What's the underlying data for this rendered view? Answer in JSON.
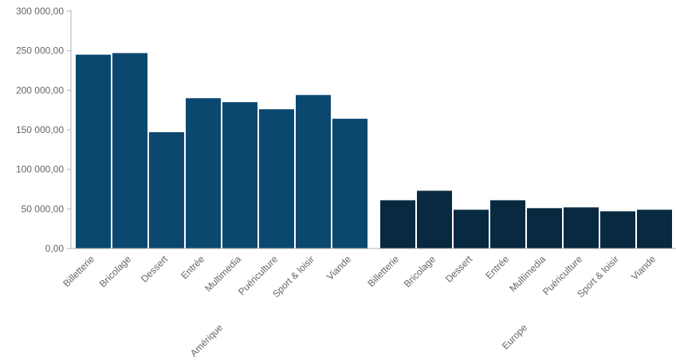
{
  "chart_data": {
    "type": "bar",
    "title": "",
    "xlabel": "",
    "ylabel": "",
    "ylim": [
      0,
      300000
    ],
    "yticks": [
      0,
      50000,
      100000,
      150000,
      200000,
      250000,
      300000
    ],
    "ytick_labels": [
      "0,00",
      "50 000,00",
      "100 000,00",
      "150 000,00",
      "200 000,00",
      "250 000,00",
      "300 000,00"
    ],
    "grid": false,
    "legend": "none",
    "groups": [
      {
        "name": "Amérique",
        "color": "#0b4870",
        "categories": [
          "Billetterie",
          "Bricolage",
          "Dessert",
          "Entrée",
          "Multimedia",
          "Puériculture",
          "Sport & loisir",
          "Viande"
        ],
        "values": [
          245000,
          247000,
          147000,
          190000,
          185000,
          176000,
          194000,
          164000
        ]
      },
      {
        "name": "Europe",
        "color": "#072a40",
        "categories": [
          "Billetterie",
          "Bricolage",
          "Dessert",
          "Entrée",
          "Multimedia",
          "Puériculture",
          "Sport & loisir",
          "Viande"
        ],
        "values": [
          61000,
          73000,
          49000,
          61000,
          51000,
          52000,
          47000,
          49000
        ]
      }
    ]
  }
}
